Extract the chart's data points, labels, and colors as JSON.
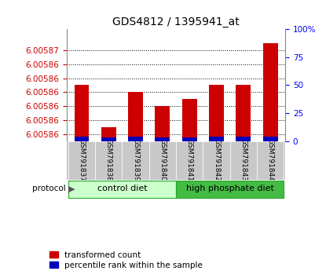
{
  "title": "GDS4812 / 1395941_at",
  "samples": [
    "GSM791837",
    "GSM791838",
    "GSM791839",
    "GSM791840",
    "GSM791841",
    "GSM791842",
    "GSM791843",
    "GSM791844"
  ],
  "red_values": [
    6.005863,
    6.005857,
    6.005862,
    6.00586,
    6.005861,
    6.005863,
    6.005863,
    6.005869
  ],
  "blue_values": [
    4,
    3,
    4,
    3,
    3,
    4,
    4,
    4
  ],
  "ylim_min": 6.005855,
  "ylim_max": 6.005871,
  "left_yticks": [
    6.005856,
    6.005858,
    6.00586,
    6.005862,
    6.005864,
    6.005866,
    6.005868
  ],
  "left_ytick_labels": [
    "6.00586",
    "6.00586",
    "6.00586",
    "6.00586",
    "6.00586",
    "6.00586",
    "6.00587"
  ],
  "right_yticks": [
    0,
    25,
    50,
    75,
    100
  ],
  "right_ytick_labels": [
    "0",
    "25",
    "50",
    "75",
    "100%"
  ],
  "bar_width": 0.55,
  "red_color": "#cc0000",
  "blue_color": "#0000bb",
  "bg_color": "#ffffff",
  "label_bg": "#c8c8c8",
  "proto_color_1": "#ccffcc",
  "proto_color_2": "#44bb44",
  "proto_edge": "#22aa22",
  "proto_label_1": "control diet",
  "proto_label_2": "high phosphate diet",
  "legend_red": "transformed count",
  "legend_blue": "percentile rank within the sample",
  "title_fontsize": 10,
  "tick_fontsize": 7.5,
  "label_fontsize": 6.5,
  "proto_fontsize": 8,
  "legend_fontsize": 7.5
}
